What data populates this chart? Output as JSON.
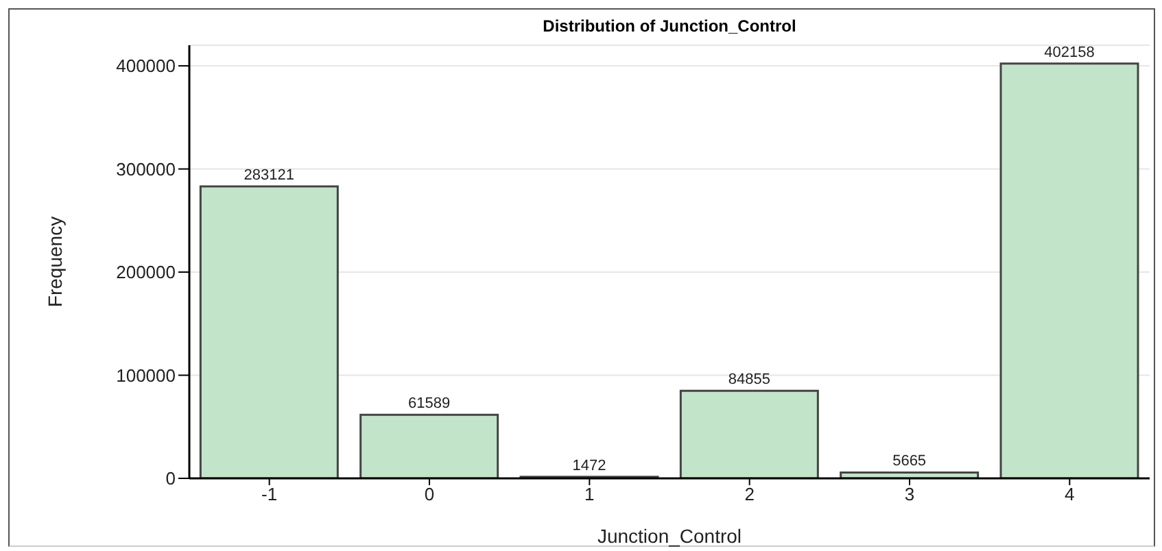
{
  "chart_data": {
    "type": "bar",
    "title": "Distribution of Junction_Control",
    "xlabel": "Junction_Control",
    "ylabel": "Frequency",
    "categories": [
      "-1",
      "0",
      "1",
      "2",
      "3",
      "4"
    ],
    "values": [
      283121,
      61589,
      1472,
      84855,
      5665,
      402158
    ],
    "color": "#c2e5c9",
    "ylim": [
      0,
      420000
    ],
    "yticks": [
      0,
      100000,
      200000,
      300000,
      400000
    ],
    "grid": "y",
    "data_labels": true
  }
}
